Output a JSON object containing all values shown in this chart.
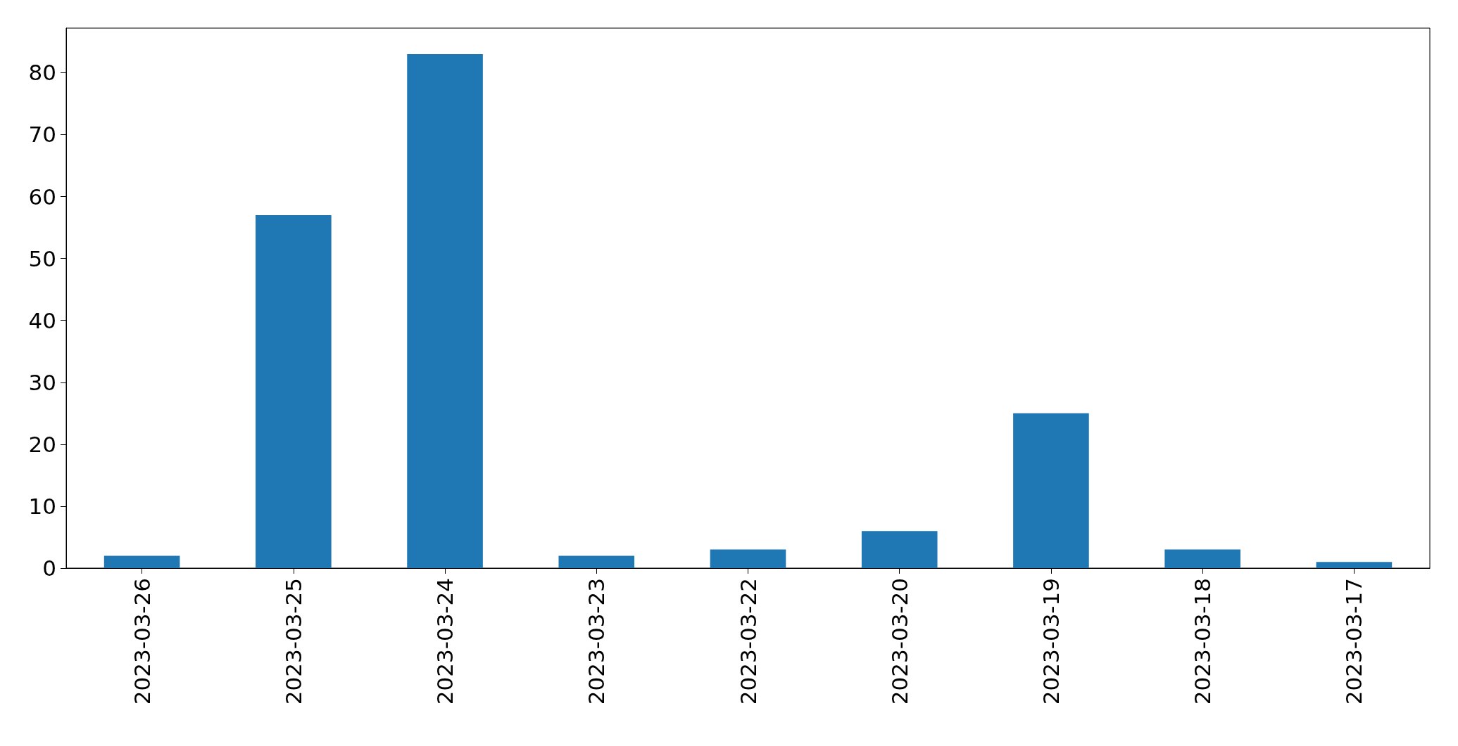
{
  "chart_data": {
    "type": "bar",
    "categories": [
      "2023-03-26",
      "2023-03-25",
      "2023-03-24",
      "2023-03-23",
      "2023-03-22",
      "2023-03-20",
      "2023-03-19",
      "2023-03-18",
      "2023-03-17"
    ],
    "values": [
      2,
      57,
      83,
      2,
      3,
      6,
      25,
      3,
      1
    ],
    "color": "#1f77b4",
    "ylim": [
      0,
      87.2
    ],
    "yticks": [
      0,
      10,
      20,
      30,
      40,
      50,
      60,
      70,
      80
    ],
    "grid": false
  }
}
